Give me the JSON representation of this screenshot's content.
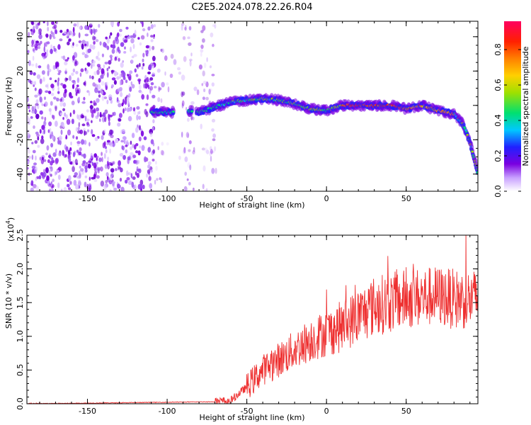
{
  "title": "C2E5.2024.078.22.26.R04",
  "chart_data": [
    {
      "type": "heatmap",
      "xlabel": "Height of straight line (km)",
      "ylabel": "Frequency (Hz)",
      "xlim": [
        -188,
        95
      ],
      "ylim": [
        -50,
        49
      ],
      "xticks": [
        -150,
        -100,
        -50,
        0,
        50
      ],
      "yticks": [
        -40,
        -20,
        0,
        20,
        40
      ],
      "colorbar": {
        "label": "Normalized spectral amplitude",
        "range": [
          0,
          0.96
        ],
        "ticks": [
          "0.0",
          "0.2",
          "0.4",
          "0.6",
          "0.8"
        ],
        "colors": [
          "#ffffff",
          "#c8a0ff",
          "#7a00e0",
          "#2020ff",
          "#00c8ff",
          "#00e070",
          "#a0e000",
          "#ffd000",
          "#ff8000",
          "#ff2000",
          "#ff0060"
        ]
      },
      "noise_region_x": [
        -188,
        -68
      ],
      "signal_trace": {
        "x": [
          -110,
          -95,
          -90,
          -80,
          -70,
          -60,
          -50,
          -40,
          -30,
          -20,
          -10,
          0,
          10,
          20,
          30,
          40,
          50,
          60,
          70,
          80,
          85,
          88,
          90,
          93,
          95
        ],
        "y": [
          -4,
          -4,
          -3,
          -4,
          -1,
          2,
          3,
          4,
          3,
          1,
          -2,
          -3,
          0,
          0,
          0,
          0,
          -2,
          0,
          -3,
          -5,
          -10,
          -16,
          -22,
          -32,
          -40
        ]
      }
    },
    {
      "type": "line",
      "xlabel": "Height of straight line (km)",
      "ylabel": "SNR (10 * v/v)",
      "ylabel_unit": "(x10",
      "ylabel_exp": "4",
      "ylabel_close": ")",
      "xlim": [
        -188,
        95
      ],
      "ylim": [
        0,
        2.5
      ],
      "xticks": [
        -150,
        -100,
        -50,
        0,
        50
      ],
      "yticks": [
        "0.0",
        "0.5",
        "1.0",
        "1.5",
        "2.0",
        "2.5"
      ],
      "color": "#ee3030",
      "envelope": {
        "x": [
          -188,
          -70,
          -60,
          -50,
          -40,
          -30,
          -20,
          -10,
          0,
          10,
          20,
          30,
          40,
          50,
          60,
          70,
          80,
          95
        ],
        "y": [
          0.0,
          0.03,
          0.05,
          0.25,
          0.5,
          0.65,
          0.8,
          0.95,
          1.05,
          1.15,
          1.3,
          1.45,
          1.5,
          1.55,
          1.58,
          1.6,
          1.55,
          1.55
        ]
      }
    }
  ]
}
